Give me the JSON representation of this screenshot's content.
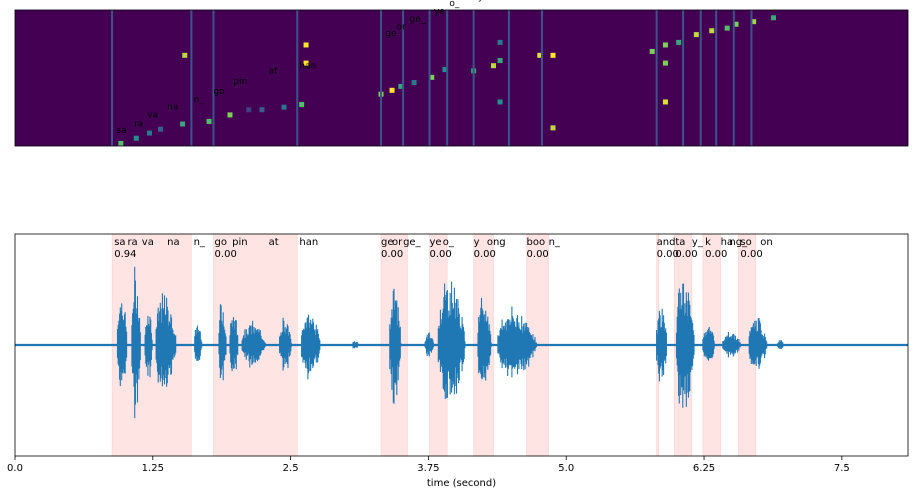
{
  "chart_data": [
    {
      "type": "heatmap",
      "title": "",
      "colormap": "viridis",
      "background_color": "#440154",
      "boundary_color": "#3b528b",
      "boundaries": [
        0.88,
        1.6,
        1.8,
        2.56,
        3.32,
        3.52,
        3.76,
        3.92,
        4.16,
        4.48,
        4.78,
        5.82,
        6.06,
        6.22,
        6.36,
        6.52,
        6.68
      ],
      "labels": [
        {
          "t": 0.92,
          "row": 1.0,
          "text": "sa"
        },
        {
          "t": 1.08,
          "row": 1.5,
          "text": "ra"
        },
        {
          "t": 1.2,
          "row": 2.2,
          "text": "va"
        },
        {
          "t": 1.38,
          "row": 2.8,
          "text": "na"
        },
        {
          "t": 1.62,
          "row": 3.4,
          "text": "n_"
        },
        {
          "t": 1.8,
          "row": 4.0,
          "text": "go"
        },
        {
          "t": 1.98,
          "row": 4.8,
          "text": "pin"
        },
        {
          "t": 2.3,
          "row": 5.6,
          "text": "at"
        },
        {
          "t": 2.58,
          "row": 6.0,
          "text": "han"
        },
        {
          "t": 3.36,
          "row": 8.5,
          "text": "ge"
        },
        {
          "t": 3.46,
          "row": 9.0,
          "text": "or"
        },
        {
          "t": 3.58,
          "row": 9.6,
          "text": "ge_"
        },
        {
          "t": 3.8,
          "row": 10.2,
          "text": "ye"
        },
        {
          "t": 3.94,
          "row": 10.8,
          "text": "o_"
        },
        {
          "t": 4.2,
          "row": 11.3,
          "text": "y"
        },
        {
          "t": 4.32,
          "row": 11.9,
          "text": "ong"
        },
        {
          "t": 4.76,
          "row": 13.2,
          "text": "boo"
        },
        {
          "t": 4.96,
          "row": 13.4,
          "text": "n_"
        },
        {
          "t": 5.78,
          "row": 13.6,
          "text": "and"
        },
        {
          "t": 5.9,
          "row": 14.0,
          "text": "ya"
        },
        {
          "t": 6.06,
          "row": 14.7,
          "text": "ta"
        },
        {
          "t": 6.22,
          "row": 15.1,
          "text": "y_"
        },
        {
          "t": 6.36,
          "row": 15.6,
          "text": "k"
        },
        {
          "t": 6.48,
          "row": 16.2,
          "text": "ha"
        },
        {
          "t": 6.54,
          "row": 16.6,
          "text": "ng"
        },
        {
          "t": 6.7,
          "row": 17.3,
          "text": "so"
        },
        {
          "t": 6.86,
          "row": 17.8,
          "text": "on"
        }
      ],
      "cells": [
        {
          "t": 0.96,
          "row": 0.2,
          "c": 0.7
        },
        {
          "t": 1.1,
          "row": 0.6,
          "c": 0.5
        },
        {
          "t": 1.22,
          "row": 1.0,
          "c": 0.4
        },
        {
          "t": 1.32,
          "row": 1.3,
          "c": 0.3
        },
        {
          "t": 1.52,
          "row": 1.7,
          "c": 0.6
        },
        {
          "t": 1.54,
          "row": 7.0,
          "c": 0.9
        },
        {
          "t": 1.76,
          "row": 1.9,
          "c": 0.7
        },
        {
          "t": 1.95,
          "row": 2.4,
          "c": 0.8
        },
        {
          "t": 2.12,
          "row": 2.8,
          "c": 0.2
        },
        {
          "t": 2.24,
          "row": 2.8,
          "c": 0.3
        },
        {
          "t": 2.44,
          "row": 3.0,
          "c": 0.4
        },
        {
          "t": 2.6,
          "row": 3.2,
          "c": 0.7
        },
        {
          "t": 2.64,
          "row": 7.8,
          "c": 1.0
        },
        {
          "t": 2.64,
          "row": 6.4,
          "c": 1.0
        },
        {
          "t": 3.32,
          "row": 4.0,
          "c": 0.8
        },
        {
          "t": 3.42,
          "row": 4.3,
          "c": 1.0
        },
        {
          "t": 3.5,
          "row": 4.6,
          "c": 0.6
        },
        {
          "t": 3.62,
          "row": 4.9,
          "c": 0.4
        },
        {
          "t": 3.78,
          "row": 5.3,
          "c": 0.8
        },
        {
          "t": 3.9,
          "row": 5.9,
          "c": 0.5
        },
        {
          "t": 4.16,
          "row": 5.8,
          "c": 0.6
        },
        {
          "t": 4.34,
          "row": 6.2,
          "c": 0.9
        },
        {
          "t": 4.4,
          "row": 3.4,
          "c": 0.5
        },
        {
          "t": 4.4,
          "row": 6.6,
          "c": 0.6
        },
        {
          "t": 4.4,
          "row": 8.0,
          "c": 0.4
        },
        {
          "t": 4.76,
          "row": 7.0,
          "c": 0.95
        },
        {
          "t": 4.88,
          "row": 1.4,
          "c": 0.9
        },
        {
          "t": 4.88,
          "row": 7.0,
          "c": 1.0
        },
        {
          "t": 5.78,
          "row": 7.3,
          "c": 0.8
        },
        {
          "t": 5.9,
          "row": 3.4,
          "c": 0.95
        },
        {
          "t": 5.9,
          "row": 6.4,
          "c": 0.8
        },
        {
          "t": 5.9,
          "row": 7.8,
          "c": 0.8
        },
        {
          "t": 6.02,
          "row": 8.0,
          "c": 0.6
        },
        {
          "t": 6.18,
          "row": 8.6,
          "c": 0.9
        },
        {
          "t": 6.32,
          "row": 8.9,
          "c": 0.9
        },
        {
          "t": 6.46,
          "row": 9.1,
          "c": 0.7
        },
        {
          "t": 6.54,
          "row": 9.4,
          "c": 0.8
        },
        {
          "t": 6.7,
          "row": 9.6,
          "c": 0.85
        },
        {
          "t": 6.88,
          "row": 9.9,
          "c": 0.6
        }
      ],
      "xlim": [
        0,
        8.1
      ],
      "rows": 10.5
    },
    {
      "type": "area",
      "title": "",
      "xlabel": "time (second)",
      "ylabel": "",
      "xlim": [
        0,
        8.1
      ],
      "ylim": [
        -1,
        1
      ],
      "xticks": [
        0.0,
        1.25,
        2.5,
        3.75,
        5.0,
        6.25,
        7.5
      ],
      "xtick_labels": [
        "0.0",
        "1.25",
        "2.5",
        "3.75",
        "5.0",
        "6.25",
        "7.5"
      ],
      "waveform_color": "#1f77b4",
      "span_color": "#ffb3b3",
      "spans": [
        [
          0.88,
          1.6
        ],
        [
          1.8,
          2.56
        ],
        [
          3.32,
          3.56
        ],
        [
          3.76,
          3.92
        ],
        [
          4.16,
          4.34
        ],
        [
          4.64,
          4.84
        ],
        [
          5.82,
          5.84
        ],
        [
          5.98,
          6.14
        ],
        [
          6.24,
          6.4
        ],
        [
          6.56,
          6.72
        ]
      ],
      "segment_labels": [
        {
          "t": 0.9,
          "text": "sa"
        },
        {
          "t": 1.02,
          "text": "ra"
        },
        {
          "t": 1.15,
          "text": "va"
        },
        {
          "t": 1.38,
          "text": "na"
        },
        {
          "t": 1.62,
          "text": "n_"
        },
        {
          "t": 1.81,
          "text": "go"
        },
        {
          "t": 1.97,
          "text": "pin"
        },
        {
          "t": 2.3,
          "text": "at"
        },
        {
          "t": 2.58,
          "text": "han"
        },
        {
          "t": 3.32,
          "text": "ge"
        },
        {
          "t": 3.42,
          "text": "or"
        },
        {
          "t": 3.52,
          "text": "ge_"
        },
        {
          "t": 3.76,
          "text": "ye"
        },
        {
          "t": 3.88,
          "text": "o_"
        },
        {
          "t": 4.16,
          "text": "y"
        },
        {
          "t": 4.28,
          "text": "ong"
        },
        {
          "t": 4.64,
          "text": "boo"
        },
        {
          "t": 4.84,
          "text": "n_"
        },
        {
          "t": 5.82,
          "text": "and"
        },
        {
          "t": 5.99,
          "text": "ta"
        },
        {
          "t": 6.14,
          "text": "y_"
        },
        {
          "t": 6.26,
          "text": "k"
        },
        {
          "t": 6.4,
          "text": "ha"
        },
        {
          "t": 6.48,
          "text": "ng_"
        },
        {
          "t": 6.58,
          "text": "so"
        },
        {
          "t": 6.76,
          "text": "on"
        }
      ],
      "scores": [
        {
          "t": 0.9,
          "text": "0.94"
        },
        {
          "t": 1.81,
          "text": "0.00"
        },
        {
          "t": 3.32,
          "text": "0.00"
        },
        {
          "t": 3.76,
          "text": "0.00"
        },
        {
          "t": 4.16,
          "text": "0.00"
        },
        {
          "t": 4.64,
          "text": "0.00"
        },
        {
          "t": 5.82,
          "text": "0.00"
        },
        {
          "t": 5.99,
          "text": "0.00"
        },
        {
          "t": 6.26,
          "text": "0.00"
        },
        {
          "t": 6.58,
          "text": "0.00"
        }
      ],
      "bursts": [
        {
          "start": 0.93,
          "end": 1.06,
          "amp": 0.68
        },
        {
          "start": 1.06,
          "end": 1.18,
          "amp": 0.88
        },
        {
          "start": 1.18,
          "end": 1.28,
          "amp": 0.52
        },
        {
          "start": 1.28,
          "end": 1.55,
          "amp": 0.62
        },
        {
          "start": 1.63,
          "end": 1.73,
          "amp": 0.3
        },
        {
          "start": 1.85,
          "end": 1.95,
          "amp": 0.58
        },
        {
          "start": 1.95,
          "end": 2.06,
          "amp": 0.43
        },
        {
          "start": 2.06,
          "end": 2.38,
          "amp": 0.27
        },
        {
          "start": 2.4,
          "end": 2.56,
          "amp": 0.36
        },
        {
          "start": 2.6,
          "end": 2.85,
          "amp": 0.42
        },
        {
          "start": 3.06,
          "end": 3.14,
          "amp": 0.06
        },
        {
          "start": 3.4,
          "end": 3.55,
          "amp": 0.72
        },
        {
          "start": 3.72,
          "end": 3.84,
          "amp": 0.15
        },
        {
          "start": 3.84,
          "end": 4.2,
          "amp": 0.79
        },
        {
          "start": 4.2,
          "end": 4.38,
          "amp": 0.56
        },
        {
          "start": 4.38,
          "end": 4.9,
          "amp": 0.42
        },
        {
          "start": 5.82,
          "end": 5.96,
          "amp": 0.5
        },
        {
          "start": 6.0,
          "end": 6.24,
          "amp": 0.86
        },
        {
          "start": 6.24,
          "end": 6.4,
          "amp": 0.28
        },
        {
          "start": 6.42,
          "end": 6.66,
          "amp": 0.18
        },
        {
          "start": 6.66,
          "end": 6.9,
          "amp": 0.33
        },
        {
          "start": 6.92,
          "end": 7.0,
          "amp": 0.07
        }
      ],
      "grid": false
    }
  ]
}
